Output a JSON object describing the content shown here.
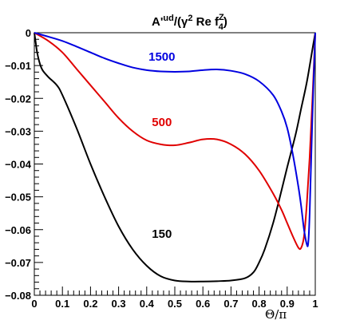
{
  "chart_data": {
    "type": "line",
    "title": {
      "base": "A'",
      "base_sup": "ud",
      "mid": "/(γ",
      "mid_sup": "2",
      "tail": " Re f",
      "tail_sup": "Z",
      "tail_sub": "4",
      "close": ")"
    },
    "xlabel": "Θ/π",
    "ylabel": "",
    "xlim": [
      0,
      1
    ],
    "ylim": [
      -0.08,
      0
    ],
    "x_ticks": [
      0,
      0.1,
      0.2,
      0.3,
      0.4,
      0.5,
      0.6,
      0.7,
      0.8,
      0.9,
      1
    ],
    "x_tick_labels": [
      "0",
      "0.1",
      "0.2",
      "0.3",
      "0.4",
      "0.5",
      "0.6",
      "0.7",
      "0.8",
      "0.9",
      "1"
    ],
    "y_ticks": [
      0,
      -0.01,
      -0.02,
      -0.03,
      -0.04,
      -0.05,
      -0.06,
      -0.07,
      -0.08
    ],
    "y_tick_labels": [
      "0",
      "−0.01",
      "−0.02",
      "−0.03",
      "−0.04",
      "−0.05",
      "−0.06",
      "−0.07",
      "−0.08"
    ],
    "grid": false,
    "legend": "none",
    "series": [
      {
        "name": "150",
        "color": "#000000",
        "label_at": [
          0.4,
          -0.0625
        ],
        "x": [
          0,
          0.005,
          0.01,
          0.02,
          0.03,
          0.05,
          0.08,
          0.1,
          0.15,
          0.2,
          0.25,
          0.3,
          0.35,
          0.4,
          0.45,
          0.5,
          0.55,
          0.6,
          0.65,
          0.7,
          0.75,
          0.78,
          0.8,
          0.82,
          0.85,
          0.88,
          0.9,
          0.93,
          0.95,
          0.97,
          0.99,
          1
        ],
        "y": [
          0,
          -0.003,
          -0.006,
          -0.0095,
          -0.0115,
          -0.0135,
          -0.016,
          -0.019,
          -0.029,
          -0.04,
          -0.05,
          -0.059,
          -0.066,
          -0.071,
          -0.0742,
          -0.0755,
          -0.0758,
          -0.0758,
          -0.0757,
          -0.0755,
          -0.0748,
          -0.073,
          -0.07,
          -0.066,
          -0.058,
          -0.048,
          -0.041,
          -0.031,
          -0.023,
          -0.015,
          -0.005,
          0
        ]
      },
      {
        "name": "500",
        "color": "#e00000",
        "label_at": [
          0.4,
          -0.0285
        ],
        "x": [
          0,
          0.05,
          0.1,
          0.15,
          0.2,
          0.25,
          0.3,
          0.35,
          0.4,
          0.45,
          0.5,
          0.55,
          0.6,
          0.65,
          0.7,
          0.75,
          0.8,
          0.85,
          0.88,
          0.9,
          0.92,
          0.94,
          0.95,
          0.96,
          0.97,
          0.98,
          0.99,
          1
        ],
        "y": [
          0,
          -0.0025,
          -0.006,
          -0.011,
          -0.016,
          -0.021,
          -0.026,
          -0.03,
          -0.0328,
          -0.034,
          -0.0343,
          -0.0335,
          -0.0325,
          -0.0325,
          -0.034,
          -0.037,
          -0.042,
          -0.049,
          -0.054,
          -0.058,
          -0.062,
          -0.0655,
          -0.0655,
          -0.062,
          -0.052,
          -0.038,
          -0.02,
          0
        ]
      },
      {
        "name": "1500",
        "color": "#0000e0",
        "label_at": [
          0.4,
          -0.0085
        ],
        "x": [
          0,
          0.05,
          0.1,
          0.15,
          0.2,
          0.25,
          0.3,
          0.35,
          0.4,
          0.45,
          0.5,
          0.55,
          0.6,
          0.65,
          0.7,
          0.75,
          0.8,
          0.85,
          0.88,
          0.9,
          0.92,
          0.94,
          0.95,
          0.96,
          0.97,
          0.975,
          0.98,
          0.99,
          1
        ],
        "y": [
          0,
          -0.0012,
          -0.0025,
          -0.0042,
          -0.006,
          -0.0078,
          -0.0093,
          -0.0106,
          -0.0114,
          -0.0118,
          -0.0119,
          -0.0118,
          -0.0114,
          -0.0112,
          -0.0116,
          -0.0126,
          -0.0148,
          -0.019,
          -0.024,
          -0.029,
          -0.037,
          -0.047,
          -0.053,
          -0.06,
          -0.0645,
          -0.064,
          -0.055,
          -0.025,
          0
        ]
      }
    ]
  }
}
